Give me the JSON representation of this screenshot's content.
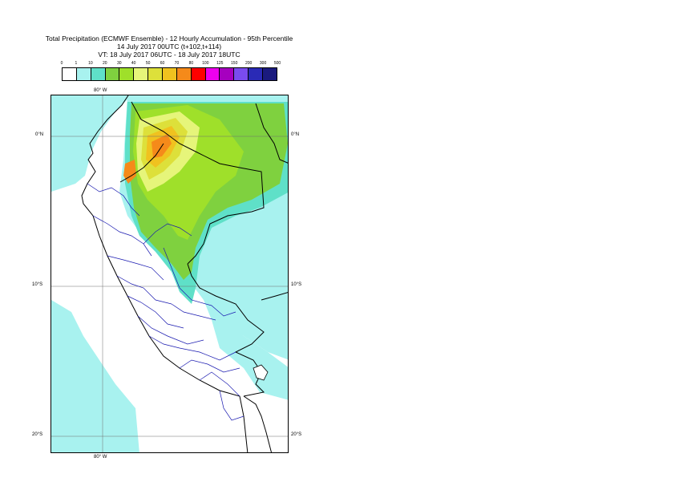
{
  "title": {
    "line1": "Total Precipitation (ECMWF Ensemble) - 12 Hourly Accumulation - 95th Percentile",
    "line2": "14 July 2017 00UTC (t+102,t+114)",
    "line3": "VT: 18 July 2017 06UTC - 18 July 2017 18UTC"
  },
  "legend": {
    "ticks": [
      "0",
      "1",
      "10",
      "20",
      "30",
      "40",
      "50",
      "60",
      "70",
      "80",
      "100",
      "125",
      "150",
      "200",
      "300",
      "500"
    ],
    "colors": [
      "#ffffff",
      "#a8f2ef",
      "#5fe0c8",
      "#7fd13f",
      "#9fe02a",
      "#e6f57a",
      "#dde03a",
      "#f0c21f",
      "#f58a1a",
      "#ff0000",
      "#ee00ee",
      "#a600bf",
      "#7a4bee",
      "#2a2ab6",
      "#1a1a7e"
    ]
  },
  "map": {
    "lon_label_top": "80° W",
    "lon_label_bottom": "80° W",
    "lat_labels": [
      {
        "left": "0°N",
        "right": "0°N"
      },
      {
        "left": "10°S",
        "right": "10°S"
      },
      {
        "left": "20°S",
        "right": "20°S"
      }
    ]
  }
}
